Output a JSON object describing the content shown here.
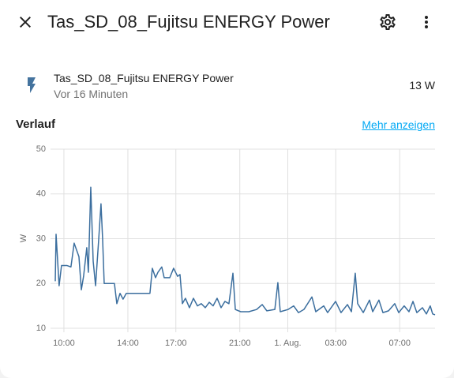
{
  "header": {
    "title": "Tas_SD_08_Fujitsu ENERGY Power"
  },
  "entity": {
    "name": "Tas_SD_08_Fujitsu ENERGY Power",
    "last_changed": "Vor 16 Minuten",
    "state": "13 W"
  },
  "history": {
    "title": "Verlauf",
    "more_link": "Mehr anzeigen"
  },
  "chart_data": {
    "type": "line",
    "y_label": "W",
    "color": "#3b6e9e",
    "grid": true,
    "x": [
      9.46,
      9.51,
      9.7,
      9.85,
      10.2,
      10.44,
      10.64,
      10.94,
      11.09,
      11.23,
      11.43,
      11.53,
      11.68,
      11.83,
      11.98,
      12.17,
      12.32,
      12.42,
      12.52,
      12.67,
      13.16,
      13.31,
      13.51,
      13.7,
      13.9,
      14.15,
      15.38,
      15.53,
      15.73,
      15.88,
      16.12,
      16.27,
      16.62,
      16.86,
      17.11,
      17.26,
      17.41,
      17.6,
      17.85,
      18.1,
      18.35,
      18.59,
      18.84,
      19.09,
      19.33,
      19.58,
      19.83,
      20.07,
      20.32,
      20.57,
      20.72,
      21.06,
      21.56,
      22.05,
      22.4,
      22.69,
      23.19,
      23.38,
      23.53,
      24.02,
      24.37,
      24.67,
      25.01,
      25.51,
      25.75,
      26.25,
      26.49,
      26.99,
      27.33,
      27.73,
      27.98,
      28.22,
      28.37,
      28.72,
      29.11,
      29.31,
      29.7,
      29.95,
      30.3,
      30.69,
      30.94,
      31.28,
      31.58,
      31.83,
      32.07,
      32.42,
      32.67,
      32.91,
      33.06,
      33.21
    ],
    "values": [
      20.5,
      31,
      19.5,
      24,
      24,
      23.7,
      29,
      26,
      18.6,
      21.6,
      28,
      22.5,
      41.5,
      25,
      19.5,
      29.5,
      37.8,
      30,
      20,
      20,
      20,
      15.5,
      17.8,
      16.5,
      17.8,
      17.8,
      17.8,
      23.4,
      21.3,
      22.5,
      23.7,
      21.3,
      21.3,
      23.4,
      21.6,
      22,
      15.5,
      16.7,
      14.6,
      16.7,
      15,
      15.5,
      14.6,
      15.8,
      15,
      16.7,
      14.6,
      16,
      15.5,
      22.3,
      14.2,
      13.7,
      13.7,
      14.2,
      15.3,
      13.9,
      14.2,
      20.2,
      13.7,
      14.2,
      15,
      13.5,
      14.2,
      17,
      13.7,
      15,
      13.5,
      16,
      13.5,
      15.3,
      13.7,
      22.3,
      15.5,
      13.5,
      16.3,
      13.7,
      16.3,
      13.5,
      13.9,
      15.5,
      13.5,
      15,
      13.7,
      16,
      13.5,
      14.6,
      13.2,
      15,
      13.2,
      13
    ],
    "xlim": [
      9.46,
      33.21
    ],
    "ylim": [
      10,
      50
    ],
    "yticks": [
      10,
      20,
      30,
      40,
      50
    ],
    "xticks": [
      {
        "value": 10,
        "label": "10:00"
      },
      {
        "value": 14,
        "label": "14:00"
      },
      {
        "value": 17,
        "label": "17:00"
      },
      {
        "value": 21,
        "label": "21:00"
      },
      {
        "value": 24,
        "label": "1. Aug."
      },
      {
        "value": 27,
        "label": "03:00"
      },
      {
        "value": 31,
        "label": "07:00"
      }
    ]
  }
}
